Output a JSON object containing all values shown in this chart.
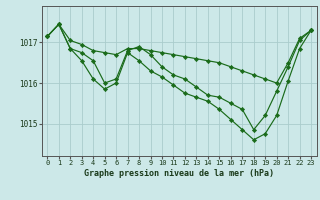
{
  "title": "Graphe pression niveau de la mer (hPa)",
  "background_color": "#cce8e8",
  "grid_color": "#aacccc",
  "line_color": "#1a6b1a",
  "marker_color": "#1a6b1a",
  "x_ticks": [
    0,
    1,
    2,
    3,
    4,
    5,
    6,
    7,
    8,
    9,
    10,
    11,
    12,
    13,
    14,
    15,
    16,
    17,
    18,
    19,
    20,
    21,
    22,
    23
  ],
  "ylim": [
    1014.2,
    1017.9
  ],
  "yticks": [
    1015,
    1016,
    1017
  ],
  "series1": [
    1017.15,
    1017.45,
    1017.05,
    1016.95,
    1016.8,
    1016.75,
    1016.7,
    1016.85,
    1016.85,
    1016.8,
    1016.75,
    1016.7,
    1016.65,
    1016.6,
    1016.55,
    1016.5,
    1016.4,
    1016.3,
    1016.2,
    1016.1,
    1016.0,
    1016.5,
    1017.1,
    1017.3
  ],
  "series2": [
    1017.15,
    1017.45,
    1016.85,
    1016.75,
    1016.55,
    1016.0,
    1016.1,
    1016.8,
    1016.9,
    1016.7,
    1016.4,
    1016.2,
    1016.1,
    1015.9,
    1015.7,
    1015.65,
    1015.5,
    1015.35,
    1014.85,
    1015.2,
    1015.8,
    1016.4,
    1017.05,
    1017.3
  ],
  "series3": [
    1017.15,
    1017.45,
    1016.85,
    1016.55,
    1016.1,
    1015.85,
    1016.0,
    1016.75,
    1016.55,
    1016.3,
    1016.15,
    1015.95,
    1015.75,
    1015.65,
    1015.55,
    1015.35,
    1015.1,
    1014.85,
    1014.6,
    1014.75,
    1015.2,
    1016.05,
    1016.85,
    1017.3
  ]
}
